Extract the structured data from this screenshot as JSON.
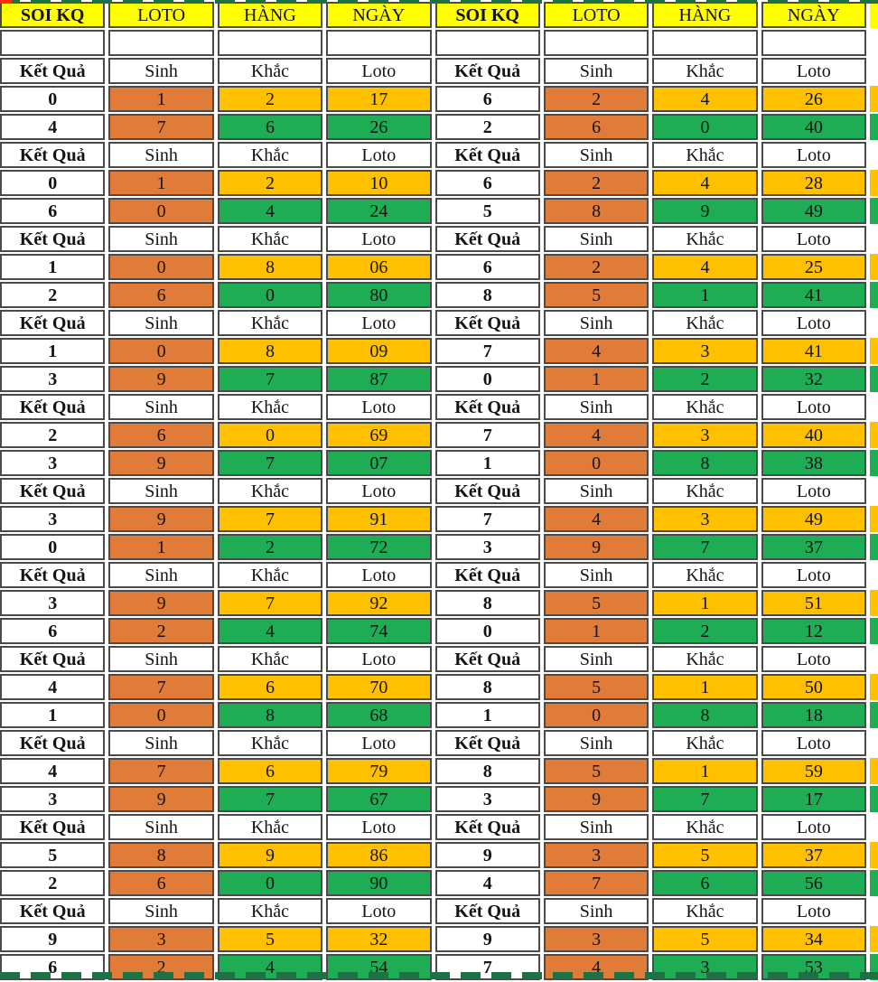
{
  "title": "Soi KQ lottery Sinh-Khac-Loto analysis table",
  "colors": {
    "header_bg": "#FFFF00",
    "sinh_cell": "#E07B39",
    "khac_gold": "#FFC000",
    "loto_green": "#1EAC55",
    "cell_border": "#4a4a4a",
    "page_break_dash": "#1E7145",
    "corner_mark": "#FF2A00"
  },
  "header": {
    "columns": [
      "SOI KQ",
      "LOTO",
      "HÀNG",
      "NGÀY",
      "SOI KQ",
      "LOTO",
      "HÀNG",
      "NGÀY"
    ]
  },
  "label_row": {
    "result": "Kết Quả",
    "sinh": "Sinh",
    "khac": "Khắc",
    "loto": "Loto"
  },
  "blocks": [
    {
      "left": [
        [
          "0",
          "1",
          "2",
          "17"
        ],
        [
          "4",
          "7",
          "6",
          "26"
        ]
      ],
      "right": [
        [
          "6",
          "2",
          "4",
          "26"
        ],
        [
          "2",
          "6",
          "0",
          "40"
        ]
      ]
    },
    {
      "left": [
        [
          "0",
          "1",
          "2",
          "10"
        ],
        [
          "6",
          "0",
          "4",
          "24"
        ]
      ],
      "right": [
        [
          "6",
          "2",
          "4",
          "28"
        ],
        [
          "5",
          "8",
          "9",
          "49"
        ]
      ]
    },
    {
      "left": [
        [
          "1",
          "0",
          "8",
          "06"
        ],
        [
          "2",
          "6",
          "0",
          "80"
        ]
      ],
      "right": [
        [
          "6",
          "2",
          "4",
          "25"
        ],
        [
          "8",
          "5",
          "1",
          "41"
        ]
      ]
    },
    {
      "left": [
        [
          "1",
          "0",
          "8",
          "09"
        ],
        [
          "3",
          "9",
          "7",
          "87"
        ]
      ],
      "right": [
        [
          "7",
          "4",
          "3",
          "41"
        ],
        [
          "0",
          "1",
          "2",
          "32"
        ]
      ]
    },
    {
      "left": [
        [
          "2",
          "6",
          "0",
          "69"
        ],
        [
          "3",
          "9",
          "7",
          "07"
        ]
      ],
      "right": [
        [
          "7",
          "4",
          "3",
          "40"
        ],
        [
          "1",
          "0",
          "8",
          "38"
        ]
      ]
    },
    {
      "left": [
        [
          "3",
          "9",
          "7",
          "91"
        ],
        [
          "0",
          "1",
          "2",
          "72"
        ]
      ],
      "right": [
        [
          "7",
          "4",
          "3",
          "49"
        ],
        [
          "3",
          "9",
          "7",
          "37"
        ]
      ]
    },
    {
      "left": [
        [
          "3",
          "9",
          "7",
          "92"
        ],
        [
          "6",
          "2",
          "4",
          "74"
        ]
      ],
      "right": [
        [
          "8",
          "5",
          "1",
          "51"
        ],
        [
          "0",
          "1",
          "2",
          "12"
        ]
      ]
    },
    {
      "left": [
        [
          "4",
          "7",
          "6",
          "70"
        ],
        [
          "1",
          "0",
          "8",
          "68"
        ]
      ],
      "right": [
        [
          "8",
          "5",
          "1",
          "50"
        ],
        [
          "1",
          "0",
          "8",
          "18"
        ]
      ]
    },
    {
      "left": [
        [
          "4",
          "7",
          "6",
          "79"
        ],
        [
          "3",
          "9",
          "7",
          "67"
        ]
      ],
      "right": [
        [
          "8",
          "5",
          "1",
          "59"
        ],
        [
          "3",
          "9",
          "7",
          "17"
        ]
      ]
    },
    {
      "left": [
        [
          "5",
          "8",
          "9",
          "86"
        ],
        [
          "2",
          "6",
          "0",
          "90"
        ]
      ],
      "right": [
        [
          "9",
          "3",
          "5",
          "37"
        ],
        [
          "4",
          "7",
          "6",
          "56"
        ]
      ]
    },
    {
      "left": [
        [
          "9",
          "3",
          "5",
          "32"
        ],
        [
          "6",
          "2",
          "4",
          "54"
        ]
      ],
      "right": [
        [
          "9",
          "3",
          "5",
          "34"
        ],
        [
          "7",
          "4",
          "3",
          "53"
        ]
      ]
    }
  ]
}
